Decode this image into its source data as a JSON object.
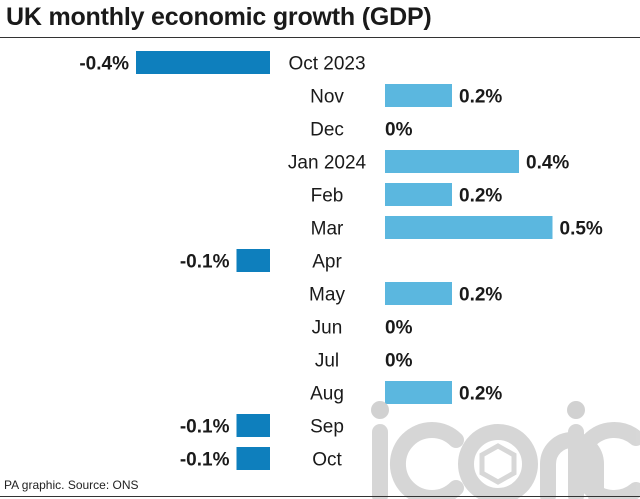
{
  "title": "UK monthly economic growth (GDP)",
  "footer": "PA graphic. Source: ONS",
  "watermark": "iconic",
  "colors": {
    "negative": "#0e7fbd",
    "positive": "#5bb7df",
    "text": "#1a1a1a",
    "watermark": "#c9c9c9"
  },
  "chart_data": {
    "type": "bar",
    "orientation": "horizontal",
    "title": "UK monthly economic growth (GDP)",
    "unit": "%",
    "categories": [
      "Oct 2023",
      "Nov",
      "Dec",
      "Jan 2024",
      "Feb",
      "Mar",
      "Apr",
      "May",
      "Jun",
      "Jul",
      "Aug",
      "Sep",
      "Oct"
    ],
    "values": [
      -0.4,
      0.2,
      0,
      0.4,
      0.2,
      0.5,
      -0.1,
      0.2,
      0,
      0,
      0.2,
      -0.1,
      -0.1
    ],
    "value_labels": [
      "-0.4%",
      "0.2%",
      "0%",
      "0.4%",
      "0.2%",
      "0.5%",
      "-0.1%",
      "0.2%",
      "0%",
      "0%",
      "0.2%",
      "-0.1%",
      "-0.1%"
    ],
    "grid": false,
    "legend": "none"
  }
}
